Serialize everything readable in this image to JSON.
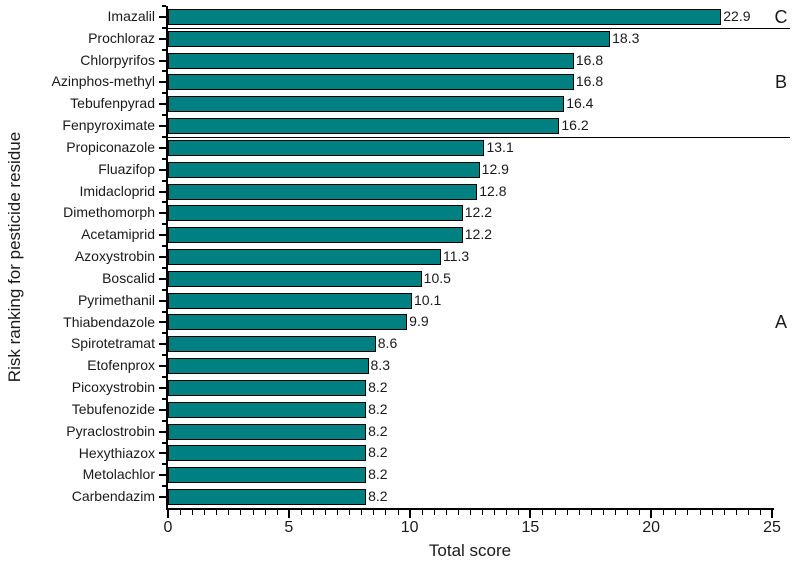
{
  "chart_data": {
    "type": "bar",
    "orientation": "horizontal",
    "title": "",
    "xlabel": "Total score",
    "ylabel": "Risk ranking for pesticide residue",
    "xlim": [
      0,
      25
    ],
    "x_major_ticks": [
      0,
      5,
      10,
      15,
      20,
      25
    ],
    "x_tick_labels": [
      "0",
      "5",
      "10",
      "15",
      "20",
      "25"
    ],
    "x_minor_step": 0.5,
    "grid": false,
    "bar_color": "#008080",
    "bar_border_color": "#000000",
    "categories": [
      "Imazalil",
      "Prochloraz",
      "Chlorpyrifos",
      "Azinphos-methyl",
      "Tebufenpyrad",
      "Fenpyroximate",
      "Propiconazole",
      "Fluazifop",
      "Imidacloprid",
      "Dimethomorph",
      "Acetamiprid",
      "Azoxystrobin",
      "Boscalid",
      "Pyrimethanil",
      "Thiabendazole",
      "Spirotetramat",
      "Etofenprox",
      "Picoxystrobin",
      "Tebufenozide",
      "Pyraclostrobin",
      "Hexythiazox",
      "Metolachlor",
      "Carbendazim"
    ],
    "values": [
      22.9,
      18.3,
      16.8,
      16.8,
      16.4,
      16.2,
      13.1,
      12.9,
      12.8,
      12.2,
      12.2,
      11.3,
      10.5,
      10.1,
      9.9,
      8.6,
      8.3,
      8.2,
      8.2,
      8.2,
      8.2,
      8.2,
      8.2
    ],
    "value_labels": [
      "22.9",
      "18.3",
      "16.8",
      "16.8",
      "16.4",
      "16.2",
      "13.1",
      "12.9",
      "12.8",
      "12.2",
      "12.2",
      "11.3",
      "10.5",
      "10.1",
      "9.9",
      "8.6",
      "8.3",
      "8.2",
      "8.2",
      "8.2",
      "8.2",
      "8.2",
      "8.2"
    ],
    "groups": [
      {
        "label": "C",
        "start": 0,
        "end": 0
      },
      {
        "label": "B",
        "start": 1,
        "end": 5
      },
      {
        "label": "A",
        "start": 6,
        "end": 22
      }
    ],
    "separators_after_index": [
      0,
      5
    ]
  }
}
